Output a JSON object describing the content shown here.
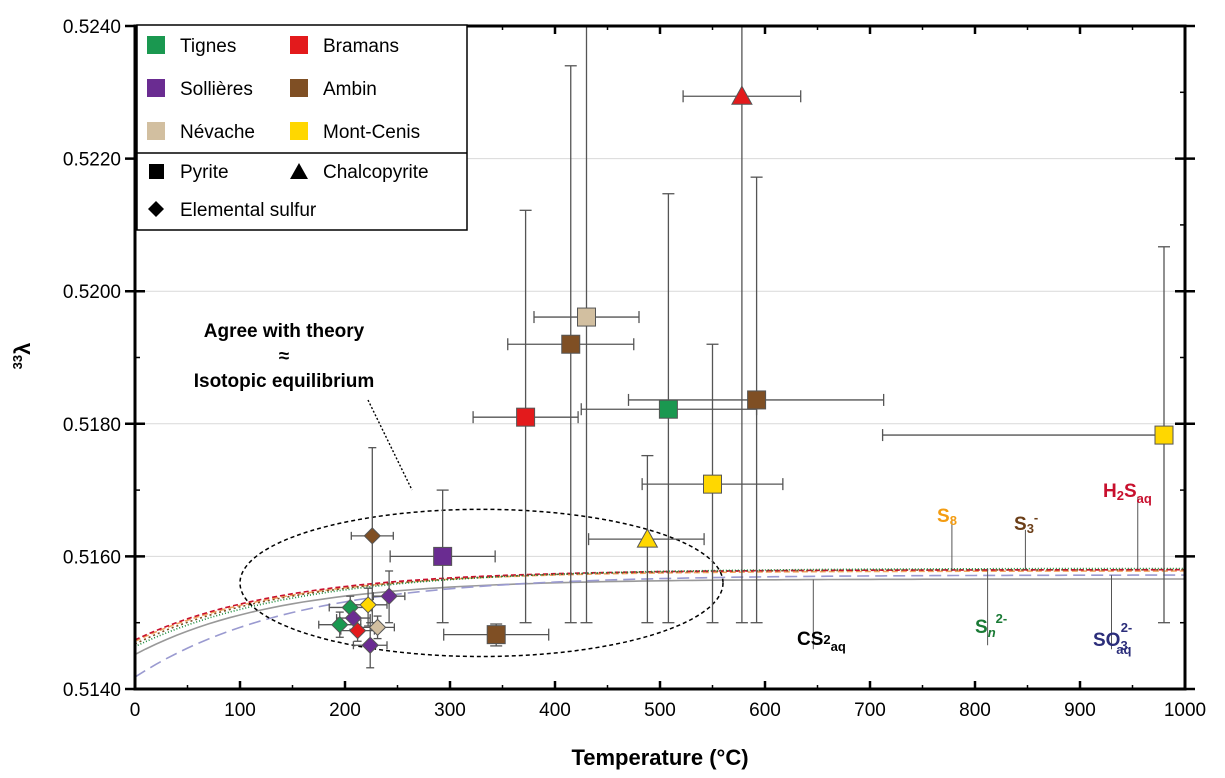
{
  "chart_data": {
    "type": "scatter",
    "title": "",
    "xlabel": "Temperature (°C)",
    "ylabel_prefix": "33",
    "ylabel": "λ",
    "xlim": [
      0,
      1000
    ],
    "ylim": [
      0.514,
      0.524
    ],
    "xticks": [
      0,
      100,
      200,
      300,
      400,
      500,
      600,
      700,
      800,
      900,
      1000
    ],
    "yticks": [
      0.514,
      0.516,
      0.518,
      0.52,
      0.522,
      0.524
    ],
    "ytick_labels": [
      "0.5140",
      "0.5160",
      "0.5180",
      "0.5200",
      "0.5220",
      "0.5240"
    ],
    "grid": "horizontal",
    "legend": {
      "position": "top-left",
      "colors": [
        {
          "name": "Tignes",
          "color": "#1a9850"
        },
        {
          "name": "Bramans",
          "color": "#e31a1c"
        },
        {
          "name": "Sollières",
          "color": "#6a2c91"
        },
        {
          "name": "Ambin",
          "color": "#7f4f24"
        },
        {
          "name": "Névache",
          "color": "#d2bfa0"
        },
        {
          "name": "Mont-Cenis",
          "color": "#ffd700"
        }
      ],
      "shapes": [
        {
          "name": "Pyrite",
          "shape": "square"
        },
        {
          "name": "Chalcopyrite",
          "shape": "triangle"
        },
        {
          "name": "Elemental sulfur",
          "shape": "diamond"
        }
      ]
    },
    "points": [
      {
        "site": "Bramans",
        "mineral": "chalcopyrite",
        "x": 578,
        "y": 0.52294,
        "xerr": [
          522,
          634
        ],
        "yerr": [
          0.515,
          0.5245
        ]
      },
      {
        "site": "Névache",
        "mineral": "pyrite",
        "x": 430,
        "y": 0.51961,
        "xerr": [
          380,
          480
        ],
        "yerr": [
          0.515,
          0.5245
        ]
      },
      {
        "site": "Ambin",
        "mineral": "pyrite",
        "x": 415,
        "y": 0.5192,
        "xerr": [
          355,
          475
        ],
        "yerr": [
          0.515,
          0.5234
        ]
      },
      {
        "site": "Bramans",
        "mineral": "pyrite",
        "x": 372,
        "y": 0.5181,
        "xerr": [
          322,
          422
        ],
        "yerr": [
          0.515,
          0.52122
        ]
      },
      {
        "site": "Tignes",
        "mineral": "pyrite",
        "x": 508,
        "y": 0.51822,
        "xerr": [
          425,
          592
        ],
        "yerr": [
          0.515,
          0.52147
        ]
      },
      {
        "site": "Ambin",
        "mineral": "pyrite",
        "x": 592,
        "y": 0.51836,
        "xerr": [
          470,
          713
        ],
        "yerr": [
          0.515,
          0.52172
        ]
      },
      {
        "site": "Mont-Cenis",
        "mineral": "pyrite",
        "x": 980,
        "y": 0.51783,
        "xerr": [
          712,
          980
        ],
        "yerr": [
          0.515,
          0.52067
        ]
      },
      {
        "site": "Mont-Cenis",
        "mineral": "pyrite",
        "x": 550,
        "y": 0.51709,
        "xerr": [
          483,
          617
        ],
        "yerr": [
          0.515,
          0.5192
        ]
      },
      {
        "site": "Mont-Cenis",
        "mineral": "chalcopyrite",
        "x": 488,
        "y": 0.51626,
        "xerr": [
          432,
          542
        ],
        "yerr": [
          0.515,
          0.51752
        ]
      },
      {
        "site": "Sollières",
        "mineral": "pyrite",
        "x": 293,
        "y": 0.516,
        "xerr": [
          243,
          343
        ],
        "yerr": [
          0.515,
          0.517
        ]
      },
      {
        "site": "Ambin",
        "mineral": "elemental sulfur",
        "x": 226,
        "y": 0.51631,
        "xerr": [
          206,
          246
        ],
        "yerr": [
          0.515,
          0.51764
        ]
      },
      {
        "site": "Ambin",
        "mineral": "pyrite",
        "x": 344,
        "y": 0.51482,
        "xerr": [
          294,
          394
        ],
        "yerr": [
          0.51465,
          0.51498
        ]
      },
      {
        "site": "Tignes",
        "mineral": "elemental sulfur",
        "x": 195,
        "y": 0.51497,
        "xerr": [
          175,
          215
        ],
        "yerr": [
          0.51478,
          0.51516
        ]
      },
      {
        "site": "Tignes",
        "mineral": "elemental sulfur",
        "x": 205,
        "y": 0.51523,
        "xerr": [
          185,
          225
        ],
        "yerr": [
          0.51506,
          0.5154
        ]
      },
      {
        "site": "Sollières",
        "mineral": "elemental sulfur",
        "x": 208,
        "y": 0.51507,
        "xerr": [
          192,
          224
        ],
        "yerr": [
          0.5149,
          0.51524
        ]
      },
      {
        "site": "Bramans",
        "mineral": "elemental sulfur",
        "x": 212,
        "y": 0.51488,
        "xerr": [
          196,
          228
        ],
        "yerr": [
          0.51472,
          0.51504
        ]
      },
      {
        "site": "Mont-Cenis",
        "mineral": "elemental sulfur",
        "x": 222,
        "y": 0.51527,
        "xerr": [
          204,
          240
        ],
        "yerr": [
          0.51495,
          0.51552
        ]
      },
      {
        "site": "Névache",
        "mineral": "elemental sulfur",
        "x": 231,
        "y": 0.51493,
        "xerr": [
          215,
          247
        ],
        "yerr": [
          0.51476,
          0.5151
        ]
      },
      {
        "site": "Sollières",
        "mineral": "elemental sulfur",
        "x": 242,
        "y": 0.5154,
        "xerr": [
          227,
          257
        ],
        "yerr": [
          0.515,
          0.51578
        ]
      },
      {
        "site": "Sollières",
        "mineral": "elemental sulfur",
        "x": 224,
        "y": 0.51466,
        "xerr": [
          208,
          240
        ],
        "yerr": [
          0.51432,
          0.515
        ]
      }
    ],
    "curves": [
      {
        "label": "S8",
        "color": "#f4a460",
        "dash": "6,3",
        "y0": 0.51472,
        "yinf": 0.51578,
        "k": 140,
        "label_pos": {
          "x": 778,
          "y": 0.51655
        },
        "leader_x": 778
      },
      {
        "label": "S3-",
        "color": "#7f4f24",
        "dash": "2,3",
        "y0": 0.51468,
        "yinf": 0.5158,
        "k": 145,
        "label_pos": {
          "x": 848,
          "y": 0.5164
        },
        "leader_x": 848
      },
      {
        "label": "H2Saq",
        "color": "#c8102e",
        "dash": "5,3",
        "y0": 0.51474,
        "yinf": 0.5158,
        "k": 140,
        "label_pos": {
          "x": 958,
          "y": 0.5169
        },
        "leader_x": 955
      },
      {
        "label": "Sn2-",
        "color": "#1a8a3a",
        "dash": "1,2",
        "y0": 0.51464,
        "yinf": 0.51582,
        "k": 155,
        "label_pos": {
          "x": 812,
          "y": 0.51466
        },
        "leader_x": 812
      },
      {
        "label": "CS2aq",
        "color": "#999999",
        "dash": "",
        "y0": 0.51452,
        "yinf": 0.51566,
        "k": 135,
        "label_pos": {
          "x": 656,
          "y": 0.5146
        },
        "leader_x": 646
      },
      {
        "label": "SO3 2-aq",
        "color": "#9a9ad0",
        "dash": "12,6",
        "y0": 0.51418,
        "yinf": 0.51572,
        "k": 150,
        "label_pos": {
          "x": 930,
          "y": 0.5146
        },
        "leader_x": 930
      }
    ],
    "curve_labels": {
      "S8": {
        "main": "S",
        "sub": "8"
      },
      "S3": {
        "main": "S",
        "sub": "3",
        "sup": "-"
      },
      "H2S": {
        "a": "H",
        "b": "2",
        "c": "S",
        "d": "aq"
      },
      "Sn": {
        "main": "S",
        "sub": "n",
        "sup": "2-"
      },
      "CS2": {
        "a": "CS",
        "b": "2",
        "c": "aq"
      },
      "SO3": {
        "main": "SO",
        "sub1": "3",
        "sup": "2-",
        "sub2": "aq"
      }
    },
    "annotation": {
      "line1": "Agree with theory",
      "line2": "≈",
      "line3": "Isotopic equilibrium",
      "ellipse": {
        "cx": 330,
        "cy": 0.5156,
        "rx": 230,
        "ry": 0.00111
      }
    }
  }
}
